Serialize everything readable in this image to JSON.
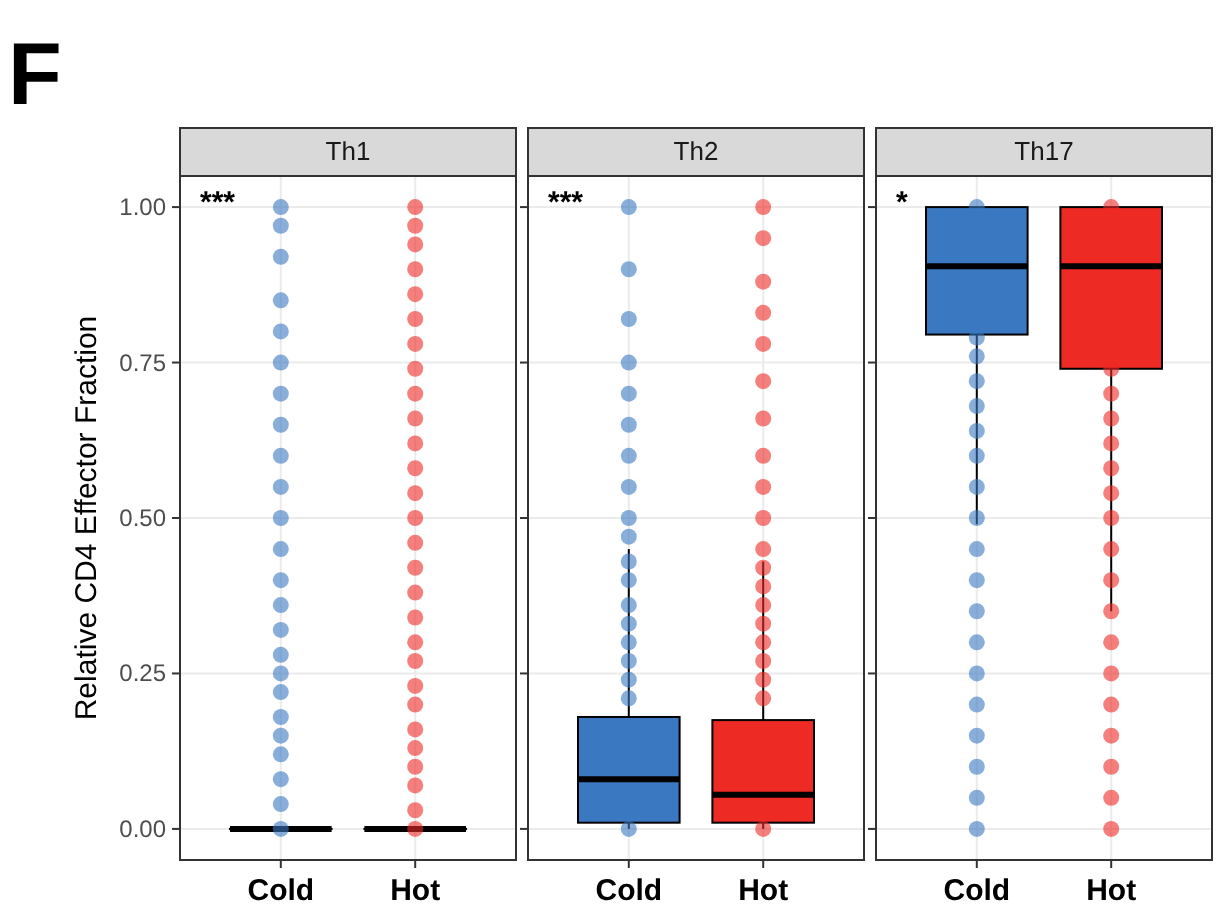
{
  "chart_data": [
    {
      "type": "box",
      "title": "Th1",
      "ylabel": "Relative CD4 Effector Fraction",
      "annotations": [
        "F",
        "***"
      ],
      "categories": [
        "Cold",
        "Hot"
      ],
      "colors": [
        "#3a78c2",
        "#ee2a24"
      ],
      "ylim": [
        -0.05,
        1.05
      ],
      "yticks": [
        {
          "value": 0,
          "label": "0.00"
        },
        {
          "value": 0.25,
          "label": "0.25"
        },
        {
          "value": 0.5,
          "label": "0.50"
        },
        {
          "value": 0.75,
          "label": "0.75"
        },
        {
          "value": 1,
          "label": "1.00"
        }
      ],
      "grid": true,
      "boxes": [
        {
          "low": 0,
          "q1": 0,
          "median": 0,
          "q3": 0,
          "high": 0
        },
        {
          "low": 0,
          "q1": 0,
          "median": 0,
          "q3": 0,
          "high": 0
        }
      ],
      "series": [
        {
          "type": "scatter",
          "color": "#3a78c2",
          "x": [
            "Cold",
            "Cold",
            "Cold",
            "Cold",
            "Cold",
            "Cold",
            "Cold",
            "Cold",
            "Cold",
            "Cold",
            "Cold",
            "Cold",
            "Cold",
            "Cold",
            "Cold",
            "Cold",
            "Cold",
            "Cold",
            "Cold",
            "Cold",
            "Cold",
            "Cold",
            "Cold",
            "Cold"
          ],
          "values": [
            0,
            0.04,
            0.08,
            0.12,
            0.15,
            0.18,
            0.22,
            0.25,
            0.28,
            0.32,
            0.36,
            0.4,
            0.45,
            0.5,
            0.55,
            0.6,
            0.65,
            0.7,
            0.75,
            0.8,
            0.85,
            0.92,
            0.97,
            1
          ]
        },
        {
          "type": "scatter",
          "color": "#ee2a24",
          "x": [
            "Hot",
            "Hot",
            "Hot",
            "Hot",
            "Hot",
            "Hot",
            "Hot",
            "Hot",
            "Hot",
            "Hot",
            "Hot",
            "Hot",
            "Hot",
            "Hot",
            "Hot",
            "Hot",
            "Hot",
            "Hot",
            "Hot",
            "Hot",
            "Hot",
            "Hot",
            "Hot",
            "Hot",
            "Hot",
            "Hot",
            "Hot",
            "Hot"
          ],
          "values": [
            0,
            0.03,
            0.07,
            0.1,
            0.13,
            0.16,
            0.2,
            0.23,
            0.27,
            0.3,
            0.34,
            0.38,
            0.42,
            0.46,
            0.5,
            0.54,
            0.58,
            0.62,
            0.66,
            0.7,
            0.74,
            0.78,
            0.82,
            0.86,
            0.9,
            0.94,
            0.97,
            1
          ]
        }
      ]
    },
    {
      "type": "box",
      "title": "Th2",
      "annotations": [
        "***"
      ],
      "tick_labels": "x",
      "categories": [
        "Cold",
        "Hot"
      ],
      "colors": [
        "#3a78c2",
        "#ee2a24"
      ],
      "ylim": [
        -0.05,
        1.05
      ],
      "yticks": [
        0,
        0.25,
        0.5,
        0.75,
        1
      ],
      "grid": true,
      "boxes": [
        {
          "low": 0,
          "q1": 0.01,
          "median": 0.08,
          "q3": 0.18,
          "high": 0.45
        },
        {
          "low": 0,
          "q1": 0.01,
          "median": 0.055,
          "q3": 0.175,
          "high": 0.43
        }
      ],
      "series": [
        {
          "type": "scatter",
          "color": "#3a78c2",
          "x": [
            "Cold",
            "Cold",
            "Cold",
            "Cold",
            "Cold",
            "Cold",
            "Cold",
            "Cold",
            "Cold",
            "Cold",
            "Cold",
            "Cold",
            "Cold",
            "Cold",
            "Cold",
            "Cold",
            "Cold",
            "Cold",
            "Cold"
          ],
          "values": [
            0,
            0.21,
            0.24,
            0.27,
            0.3,
            0.33,
            0.36,
            0.4,
            0.43,
            0.47,
            0.5,
            0.55,
            0.6,
            0.65,
            0.7,
            0.75,
            0.82,
            0.9,
            1
          ]
        },
        {
          "type": "scatter",
          "color": "#ee2a24",
          "x": [
            "Hot",
            "Hot",
            "Hot",
            "Hot",
            "Hot",
            "Hot",
            "Hot",
            "Hot",
            "Hot",
            "Hot",
            "Hot",
            "Hot",
            "Hot",
            "Hot",
            "Hot",
            "Hot",
            "Hot",
            "Hot",
            "Hot",
            "Hot"
          ],
          "values": [
            0,
            0.21,
            0.24,
            0.27,
            0.3,
            0.33,
            0.36,
            0.39,
            0.42,
            0.45,
            0.5,
            0.55,
            0.6,
            0.66,
            0.72,
            0.78,
            0.83,
            0.88,
            0.95,
            1
          ]
        }
      ]
    },
    {
      "type": "box",
      "title": "Th17",
      "annotations": [
        "*"
      ],
      "tick_labels": "x",
      "categories": [
        "Cold",
        "Hot"
      ],
      "colors": [
        "#3a78c2",
        "#ee2a24"
      ],
      "ylim": [
        -0.05,
        1.05
      ],
      "yticks": [
        0,
        0.25,
        0.5,
        0.75,
        1
      ],
      "grid": true,
      "boxes": [
        {
          "low": 0.49,
          "q1": 0.795,
          "median": 0.905,
          "q3": 1,
          "high": 1
        },
        {
          "low": 0.35,
          "q1": 0.74,
          "median": 0.905,
          "q3": 1,
          "high": 1
        }
      ],
      "series": [
        {
          "type": "scatter",
          "color": "#3a78c2",
          "x": [
            "Cold",
            "Cold",
            "Cold",
            "Cold",
            "Cold",
            "Cold",
            "Cold",
            "Cold",
            "Cold",
            "Cold",
            "Cold",
            "Cold",
            "Cold",
            "Cold",
            "Cold",
            "Cold",
            "Cold",
            "Cold",
            "Cold"
          ],
          "values": [
            1,
            0.79,
            0.76,
            0.72,
            0.68,
            0.64,
            0.6,
            0.55,
            0.5,
            0.45,
            0.4,
            0.35,
            0.3,
            0.25,
            0.2,
            0.15,
            0.1,
            0.05,
            0
          ]
        },
        {
          "type": "scatter",
          "color": "#ee2a24",
          "x": [
            "Hot",
            "Hot",
            "Hot",
            "Hot",
            "Hot",
            "Hot",
            "Hot",
            "Hot",
            "Hot",
            "Hot",
            "Hot",
            "Hot",
            "Hot",
            "Hot",
            "Hot",
            "Hot",
            "Hot",
            "Hot"
          ],
          "values": [
            1,
            0.74,
            0.7,
            0.66,
            0.62,
            0.58,
            0.54,
            0.5,
            0.45,
            0.4,
            0.35,
            0.3,
            0.25,
            0.2,
            0.15,
            0.1,
            0.05,
            0
          ]
        }
      ]
    }
  ]
}
